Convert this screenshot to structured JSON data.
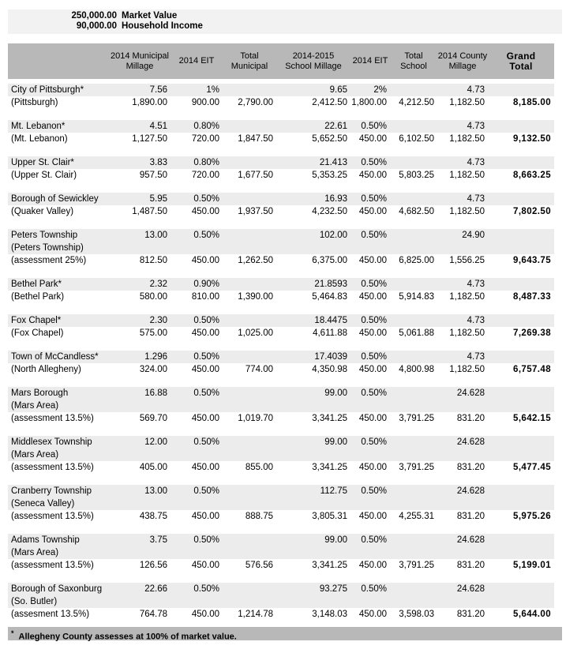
{
  "assumptions": {
    "market_value": "250,000.00",
    "market_value_label": "Market Value",
    "household_income": "90,000.00",
    "household_income_label": "Household Income"
  },
  "table": {
    "headers": [
      {
        "id": "municipality",
        "lines": []
      },
      {
        "id": "municipal-millage-2014",
        "lines": [
          "2014 Municipal",
          "Millage"
        ]
      },
      {
        "id": "municipal-eit-2014",
        "lines": [
          "2014 EIT"
        ]
      },
      {
        "id": "total-municipal",
        "lines": [
          "Total",
          "Municipal"
        ]
      },
      {
        "id": "school-millage-2014-2015",
        "lines": [
          "2014-2015",
          "School Millage"
        ]
      },
      {
        "id": "school-eit-2014",
        "lines": [
          "2014 EIT"
        ]
      },
      {
        "id": "total-school",
        "lines": [
          "Total",
          "School"
        ]
      },
      {
        "id": "county-millage-2014",
        "lines": [
          "2014 County",
          "Millage"
        ]
      },
      {
        "id": "grand-total",
        "lines": [
          "Grand",
          "Total"
        ],
        "emphasis": true
      }
    ],
    "blocks": [
      {
        "rows": [
          [
            "City of Pittsburgh*",
            "7.56",
            "1%",
            "",
            "9.65",
            "2%",
            "",
            "4.73",
            ""
          ],
          [
            "(Pittsburgh)",
            "1,890.00",
            "900.00",
            "2,790.00",
            "2,412.50",
            "1,800.00",
            "4,212.50",
            "1,182.50",
            "8,185.00"
          ]
        ]
      },
      {
        "rows": [
          [
            "Mt. Lebanon*",
            "4.51",
            "0.80%",
            "",
            "22.61",
            "0.50%",
            "",
            "4.73",
            ""
          ],
          [
            "(Mt. Lebanon)",
            "1,127.50",
            "720.00",
            "1,847.50",
            "5,652.50",
            "450.00",
            "6,102.50",
            "1,182.50",
            "9,132.50"
          ]
        ]
      },
      {
        "rows": [
          [
            "Upper St. Clair*",
            "3.83",
            "0.80%",
            "",
            "21.413",
            "0.50%",
            "",
            "4.73",
            ""
          ],
          [
            "(Upper St. Clair)",
            "957.50",
            "720.00",
            "1,677.50",
            "5,353.25",
            "450.00",
            "5,803.25",
            "1,182.50",
            "8,663.25"
          ]
        ]
      },
      {
        "rows": [
          [
            "Borough of Sewickley",
            "5.95",
            "0.50%",
            "",
            "16.93",
            "0.50%",
            "",
            "4.73",
            ""
          ],
          [
            "(Quaker Valley)",
            "1,487.50",
            "450.00",
            "1,937.50",
            "4,232.50",
            "450.00",
            "4,682.50",
            "1,182.50",
            "7,802.50"
          ]
        ]
      },
      {
        "rows": [
          [
            "Peters Township",
            "13.00",
            "0.50%",
            "",
            "102.00",
            "0.50%",
            "",
            "24.90",
            ""
          ],
          [
            "(Peters Township)",
            "",
            "",
            "",
            "",
            "",
            "",
            "",
            ""
          ],
          [
            "(assessment 25%)",
            "812.50",
            "450.00",
            "1,262.50",
            "6,375.00",
            "450.00",
            "6,825.00",
            "1,556.25",
            "9,643.75"
          ]
        ]
      },
      {
        "rows": [
          [
            "Bethel Park*",
            "2.32",
            "0.90%",
            "",
            "21.8593",
            "0.50%",
            "",
            "4.73",
            ""
          ],
          [
            "(Bethel Park)",
            "580.00",
            "810.00",
            "1,390.00",
            "5,464.83",
            "450.00",
            "5,914.83",
            "1,182.50",
            "8,487.33"
          ]
        ]
      },
      {
        "rows": [
          [
            "Fox Chapel*",
            "2.30",
            "0.50%",
            "",
            "18.4475",
            "0.50%",
            "",
            "4.73",
            ""
          ],
          [
            "(Fox Chapel)",
            "575.00",
            "450.00",
            "1,025.00",
            "4,611.88",
            "450.00",
            "5,061.88",
            "1,182.50",
            "7,269.38"
          ]
        ]
      },
      {
        "rows": [
          [
            "Town of McCandless*",
            "1.296",
            "0.50%",
            "",
            "17.4039",
            "0.50%",
            "",
            "4.73",
            ""
          ],
          [
            "(North Allegheny)",
            "324.00",
            "450.00",
            "774.00",
            "4,350.98",
            "450.00",
            "4,800.98",
            "1,182.50",
            "6,757.48"
          ]
        ]
      },
      {
        "rows": [
          [
            "Mars Borough",
            "16.88",
            "0.50%",
            "",
            "99.00",
            "0.50%",
            "",
            "24.628",
            ""
          ],
          [
            "(Mars Area)",
            "",
            "",
            "",
            "",
            "",
            "",
            "",
            ""
          ],
          [
            "(assessment 13.5%)",
            "569.70",
            "450.00",
            "1,019.70",
            "3,341.25",
            "450.00",
            "3,791.25",
            "831.20",
            "5,642.15"
          ]
        ]
      },
      {
        "rows": [
          [
            "Middlesex Township",
            "12.00",
            "0.50%",
            "",
            "99.00",
            "0.50%",
            "",
            "24.628",
            ""
          ],
          [
            "(Mars Area)",
            "",
            "",
            "",
            "",
            "",
            "",
            "",
            ""
          ],
          [
            "(assessment 13.5%)",
            "405.00",
            "450.00",
            "855.00",
            "3,341.25",
            "450.00",
            "3,791.25",
            "831.20",
            "5,477.45"
          ]
        ]
      },
      {
        "rows": [
          [
            "Cranberry Township",
            "13.00",
            "0.50%",
            "",
            "112.75",
            "0.50%",
            "",
            "24.628",
            ""
          ],
          [
            "(Seneca Valley)",
            "",
            "",
            "",
            "",
            "",
            "",
            "",
            ""
          ],
          [
            "(assessment 13.5%)",
            "438.75",
            "450.00",
            "888.75",
            "3,805.31",
            "450.00",
            "4,255.31",
            "831.20",
            "5,975.26"
          ]
        ]
      },
      {
        "rows": [
          [
            "Adams Township",
            "3.75",
            "0.50%",
            "",
            "99.00",
            "0.50%",
            "",
            "24.628",
            ""
          ],
          [
            "(Mars Area)",
            "",
            "",
            "",
            "",
            "",
            "",
            "",
            ""
          ],
          [
            "(assessment 13.5%)",
            "126.56",
            "450.00",
            "576.56",
            "3,341.25",
            "450.00",
            "3,791.25",
            "831.20",
            "5,199.01"
          ]
        ]
      },
      {
        "rows": [
          [
            "Borough of Saxonburg",
            "22.66",
            "0.50%",
            "",
            "93.275",
            "0.50%",
            "",
            "24.628",
            ""
          ],
          [
            "(So. Butler)",
            "",
            "",
            "",
            "",
            "",
            "",
            "",
            ""
          ],
          [
            "(assesment 13.5%)",
            "764.78",
            "450.00",
            "1,214.78",
            "3,148.03",
            "450.00",
            "3,598.03",
            "831.20",
            "5,644.00"
          ]
        ]
      }
    ]
  },
  "footnote": {
    "marker": "*",
    "text": "Allegheny County assesses at 100% of market value."
  },
  "colors": {
    "header_band": "#b8b8b8",
    "footnote_band": "#b8b8b8",
    "row_shade": "#ececec",
    "assumption_band": "#f2f2f2",
    "text": "#000000",
    "background": "#ffffff"
  }
}
